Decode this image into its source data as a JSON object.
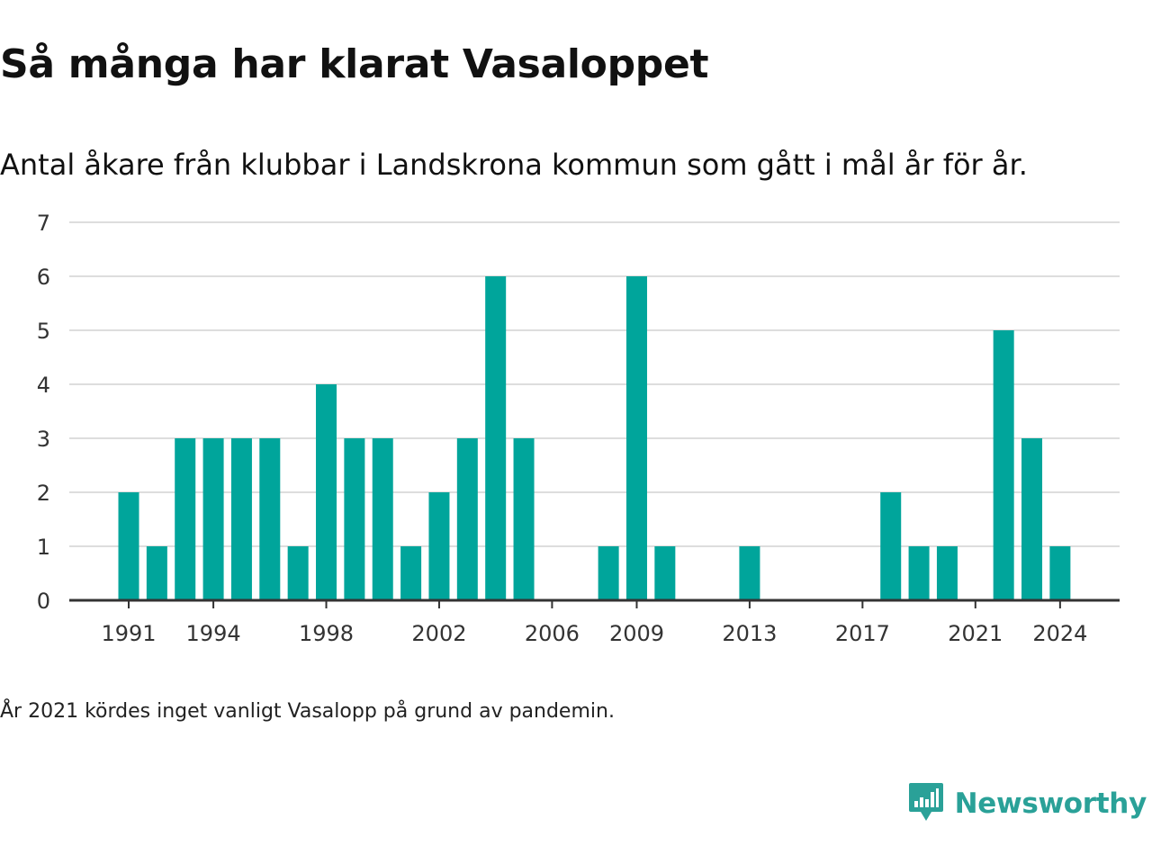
{
  "header": {
    "title": "Så många har klarat Vasaloppet",
    "subtitle": "Antal åkare från klubbar i Landskrona kommun som gått i mål år för år."
  },
  "footnote": "År 2021 kördes inget vanligt Vasalopp på grund av pandemin.",
  "brand": {
    "name": "Newsworthy",
    "icon": "newsworthy-logo-icon",
    "color": "#2aa198"
  },
  "colors": {
    "bar": "#00a59b",
    "grid": "#dddddd",
    "axis": "#333333"
  },
  "chart_data": {
    "type": "bar",
    "categories": [
      1991,
      1992,
      1993,
      1994,
      1995,
      1996,
      1997,
      1998,
      1999,
      2000,
      2001,
      2002,
      2003,
      2004,
      2005,
      2006,
      2007,
      2008,
      2009,
      2010,
      2011,
      2012,
      2013,
      2014,
      2015,
      2016,
      2017,
      2018,
      2019,
      2020,
      2021,
      2022,
      2023,
      2024
    ],
    "values": [
      2,
      1,
      3,
      3,
      3,
      3,
      1,
      4,
      3,
      3,
      1,
      2,
      3,
      6,
      3,
      0,
      0,
      1,
      6,
      1,
      0,
      0,
      1,
      0,
      0,
      0,
      0,
      2,
      1,
      1,
      0,
      5,
      3,
      1
    ],
    "x_ticks": [
      "1991",
      "1994",
      "1998",
      "2002",
      "2006",
      "2009",
      "2013",
      "2017",
      "2021",
      "2024"
    ],
    "y_ticks": [
      "0",
      "1",
      "2",
      "3",
      "4",
      "5",
      "6",
      "7"
    ],
    "ylim": [
      0,
      7
    ],
    "title": "Så många har klarat Vasaloppet",
    "xlabel": "",
    "ylabel": "",
    "grid": true,
    "legend": "none"
  }
}
